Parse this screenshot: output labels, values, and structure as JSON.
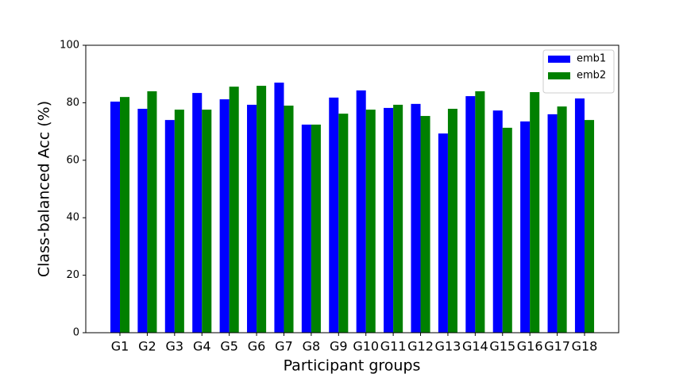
{
  "chart_data": {
    "type": "bar",
    "xlabel": "Participant groups",
    "ylabel": "Class-balanced Acc (%)",
    "categories": [
      "G1",
      "G2",
      "G3",
      "G4",
      "G5",
      "G6",
      "G7",
      "G8",
      "G9",
      "G10",
      "G11",
      "G12",
      "G13",
      "G14",
      "G15",
      "G16",
      "G17",
      "G18"
    ],
    "series": [
      {
        "name": "emb1",
        "color": "#0000ff",
        "values": [
          80.4,
          77.9,
          74.0,
          83.4,
          81.2,
          79.3,
          87.0,
          72.4,
          81.8,
          84.3,
          78.2,
          79.6,
          69.3,
          82.3,
          77.3,
          73.5,
          76.0,
          81.5
        ]
      },
      {
        "name": "emb2",
        "color": "#008000",
        "values": [
          82.0,
          84.0,
          77.6,
          77.6,
          85.6,
          85.9,
          79.0,
          72.4,
          76.2,
          77.6,
          79.3,
          75.4,
          77.9,
          84.0,
          71.3,
          83.7,
          78.7,
          74.0
        ]
      }
    ],
    "ylim": [
      0,
      100
    ],
    "yticks": [
      0,
      20,
      40,
      60,
      80,
      100
    ],
    "legend": "upper right"
  }
}
